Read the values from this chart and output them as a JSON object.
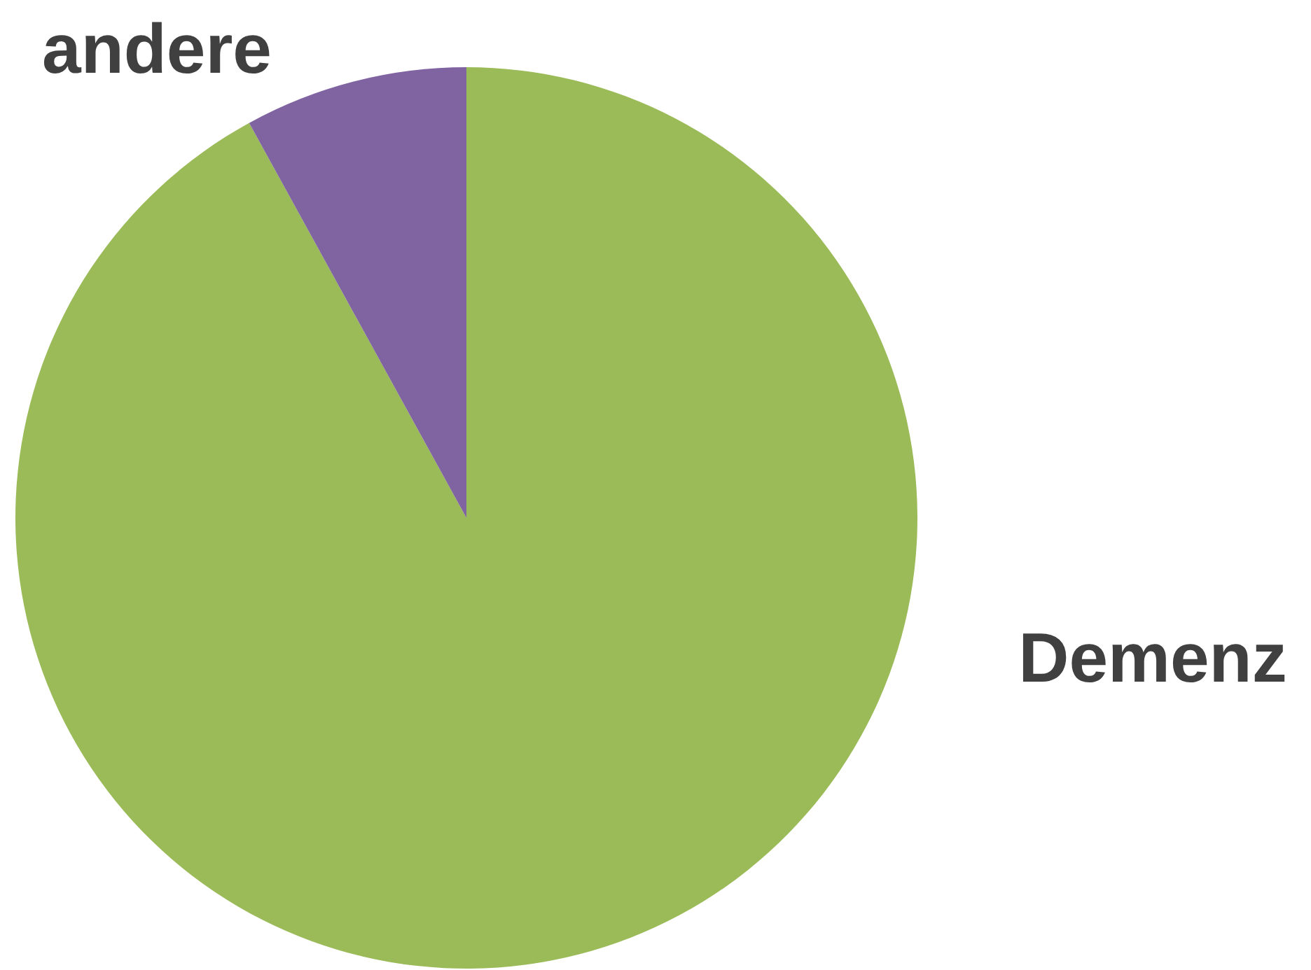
{
  "chart_data": {
    "type": "pie",
    "categories": [
      "Demenz",
      "andere"
    ],
    "values": [
      92,
      8
    ],
    "colors": [
      "#9bbb59",
      "#8064a2"
    ],
    "legend": false
  }
}
